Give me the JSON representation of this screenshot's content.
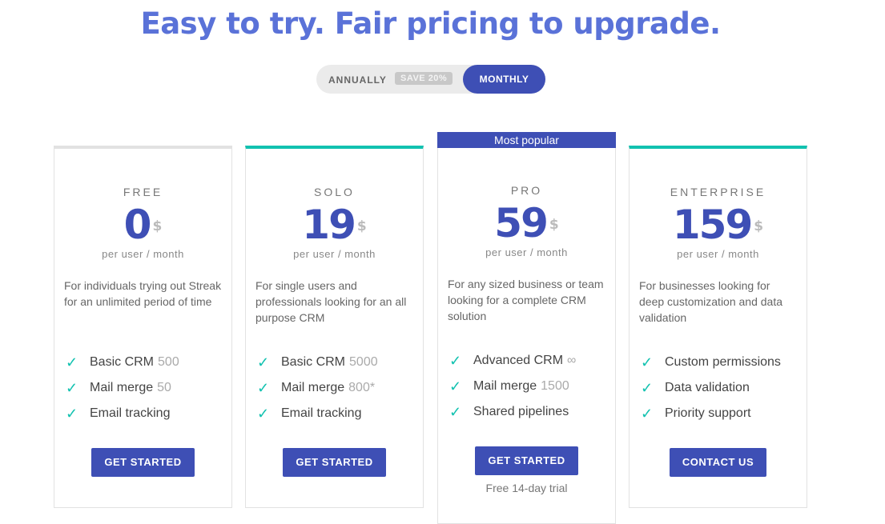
{
  "title": "Easy to try. Fair pricing to upgrade.",
  "toggle": {
    "annually": "ANNUALLY",
    "save": "SAVE 20%",
    "monthly": "MONTHLY",
    "selected": "MONTHLY"
  },
  "colors": {
    "accent": "#3e4fb5",
    "title": "#5a72d8",
    "check": "#12c2b0"
  },
  "plans": [
    {
      "name": "FREE",
      "price": "0",
      "currency": "$",
      "per": "per user / month",
      "desc": "For individuals trying out Streak for an unlimited period of time",
      "features": [
        {
          "label": "Basic CRM",
          "extra": "500"
        },
        {
          "label": "Mail merge",
          "extra": "50"
        },
        {
          "label": "Email tracking",
          "extra": ""
        }
      ],
      "button": "GET STARTED"
    },
    {
      "name": "SOLO",
      "price": "19",
      "currency": "$",
      "per": "per user / month",
      "desc": "For single users and professionals looking for an all purpose CRM",
      "features": [
        {
          "label": "Basic CRM",
          "extra": "5000"
        },
        {
          "label": "Mail merge",
          "extra": "800*"
        },
        {
          "label": "Email tracking",
          "extra": ""
        }
      ],
      "button": "GET STARTED"
    },
    {
      "badge": "Most popular",
      "name": "PRO",
      "price": "59",
      "currency": "$",
      "per": "per user / month",
      "desc": "For any sized business or team looking for a complete CRM solution",
      "features": [
        {
          "label": "Advanced CRM",
          "extra": "∞"
        },
        {
          "label": "Mail merge",
          "extra": "1500"
        },
        {
          "label": "Shared pipelines",
          "extra": ""
        }
      ],
      "button": "GET STARTED",
      "note": "Free 14-day trial"
    },
    {
      "name": "ENTERPRISE",
      "price": "159",
      "currency": "$",
      "per": "per user / month",
      "desc": "For businesses looking for deep customization and data validation",
      "features": [
        {
          "label": "Custom permissions",
          "extra": ""
        },
        {
          "label": "Data validation",
          "extra": ""
        },
        {
          "label": "Priority support",
          "extra": ""
        }
      ],
      "button": "CONTACT US"
    }
  ]
}
